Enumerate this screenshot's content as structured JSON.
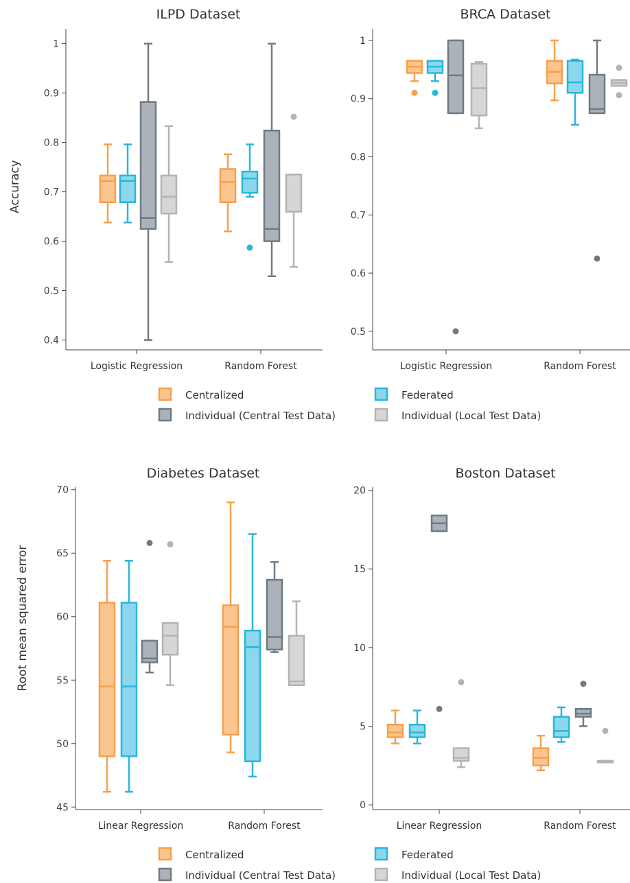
{
  "colors": {
    "centralized": {
      "stroke": "#f6a04a",
      "fill": "#fbc590"
    },
    "federated": {
      "stroke": "#27b6dd",
      "fill": "#8dd7ec"
    },
    "individual_central": {
      "stroke": "#6e7a84",
      "fill": "#abb2b9"
    },
    "individual_local": {
      "stroke": "#b3b3b3",
      "fill": "#d6d6d6"
    }
  },
  "legend": {
    "items": [
      {
        "key": "centralized",
        "label": "Centralized"
      },
      {
        "key": "federated",
        "label": "Federated"
      },
      {
        "key": "individual_central",
        "label": "Individual (Central Test Data)"
      },
      {
        "key": "individual_local",
        "label": "Individual (Local Test Data)"
      }
    ]
  },
  "shared_ylabels": {
    "top": "Accuracy",
    "bottom": "Root mean squared error"
  },
  "chart_data": [
    {
      "type": "box",
      "title": "ILPD Dataset",
      "ylabel": "Accuracy",
      "ylim": [
        0.38,
        1.03
      ],
      "yticks": [
        0.4,
        0.5,
        0.6,
        0.7,
        0.8,
        0.9,
        1
      ],
      "ytick_labels": [
        "0.4",
        "0.5",
        "0.6",
        "0.7",
        "0.8",
        "0.9",
        "1"
      ],
      "categories": [
        "Logistic Regression",
        "Random Forest"
      ],
      "series": [
        {
          "key": "centralized",
          "name": "Centralized",
          "boxes": [
            {
              "min": 0.638,
              "q1": 0.679,
              "median": 0.722,
              "q3": 0.733,
              "max": 0.796,
              "outliers": []
            },
            {
              "min": 0.62,
              "q1": 0.679,
              "median": 0.72,
              "q3": 0.746,
              "max": 0.776,
              "outliers": []
            }
          ]
        },
        {
          "key": "federated",
          "name": "Federated",
          "boxes": [
            {
              "min": 0.638,
              "q1": 0.679,
              "median": 0.722,
              "q3": 0.733,
              "max": 0.796,
              "outliers": []
            },
            {
              "min": 0.69,
              "q1": 0.698,
              "median": 0.727,
              "q3": 0.741,
              "max": 0.796,
              "outliers": [
                0.587
              ]
            }
          ]
        },
        {
          "key": "individual_central",
          "name": "Individual (Central Test Data)",
          "boxes": [
            {
              "min": 0.4,
              "q1": 0.625,
              "median": 0.647,
              "q3": 0.882,
              "max": 1.0,
              "outliers": []
            },
            {
              "min": 0.529,
              "q1": 0.6,
              "median": 0.625,
              "q3": 0.824,
              "max": 1.0,
              "outliers": []
            }
          ]
        },
        {
          "key": "individual_local",
          "name": "Individual (Local Test Data)",
          "boxes": [
            {
              "min": 0.558,
              "q1": 0.656,
              "median": 0.69,
              "q3": 0.733,
              "max": 0.833,
              "outliers": []
            },
            {
              "min": 0.548,
              "q1": 0.66,
              "median": 0.66,
              "q3": 0.735,
              "max": 0.735,
              "outliers": [
                0.852
              ]
            }
          ]
        }
      ]
    },
    {
      "type": "box",
      "title": "BRCA Dataset",
      "ylabel": "",
      "ylim": [
        0.468,
        1.02
      ],
      "yticks": [
        0.5,
        0.6,
        0.7,
        0.8,
        0.9,
        1
      ],
      "ytick_labels": [
        "0.5",
        "0.6",
        "0.7",
        "0.8",
        "0.9",
        "1"
      ],
      "categories": [
        "Logistic Regression",
        "Random Forest"
      ],
      "series": [
        {
          "key": "centralized",
          "name": "Centralized",
          "boxes": [
            {
              "min": 0.93,
              "q1": 0.944,
              "median": 0.955,
              "q3": 0.965,
              "max": 0.965,
              "outliers": [
                0.91
              ]
            },
            {
              "min": 0.897,
              "q1": 0.926,
              "median": 0.946,
              "q3": 0.965,
              "max": 1.0,
              "outliers": []
            }
          ]
        },
        {
          "key": "federated",
          "name": "Federated",
          "boxes": [
            {
              "min": 0.93,
              "q1": 0.944,
              "median": 0.955,
              "q3": 0.965,
              "max": 0.965,
              "outliers": [
                0.91
              ]
            },
            {
              "min": 0.855,
              "q1": 0.91,
              "median": 0.928,
              "q3": 0.965,
              "max": 0.967,
              "outliers": []
            }
          ]
        },
        {
          "key": "individual_central",
          "name": "Individual (Central Test Data)",
          "boxes": [
            {
              "min": 0.875,
              "q1": 0.875,
              "median": 0.94,
              "q3": 1.0,
              "max": 1.0,
              "outliers": [
                0.5
              ]
            },
            {
              "min": 0.875,
              "q1": 0.875,
              "median": 0.882,
              "q3": 0.941,
              "max": 1.0,
              "outliers": [
                0.625
              ]
            }
          ]
        },
        {
          "key": "individual_local",
          "name": "Individual (Local Test Data)",
          "boxes": [
            {
              "min": 0.849,
              "q1": 0.871,
              "median": 0.918,
              "q3": 0.96,
              "max": 0.963,
              "outliers": []
            },
            {
              "min": 0.922,
              "q1": 0.922,
              "median": 0.927,
              "q3": 0.932,
              "max": 0.932,
              "outliers": [
                0.953,
                0.906
              ]
            }
          ]
        }
      ]
    },
    {
      "type": "box",
      "title": "Diabetes Dataset",
      "ylabel": "Root mean squared error",
      "ylim": [
        44.8,
        70.2
      ],
      "yticks": [
        45,
        50,
        55,
        60,
        65,
        70
      ],
      "ytick_labels": [
        "45",
        "50",
        "55",
        "60",
        "65",
        "70"
      ],
      "categories": [
        "Linear Regression",
        "Random Forest"
      ],
      "series": [
        {
          "key": "centralized",
          "name": "Centralized",
          "boxes": [
            {
              "min": 46.2,
              "q1": 49.0,
              "median": 54.5,
              "q3": 61.1,
              "max": 64.4,
              "outliers": []
            },
            {
              "min": 49.3,
              "q1": 50.7,
              "median": 59.2,
              "q3": 60.9,
              "max": 69.0,
              "outliers": []
            }
          ]
        },
        {
          "key": "federated",
          "name": "Federated",
          "boxes": [
            {
              "min": 46.2,
              "q1": 49.0,
              "median": 54.5,
              "q3": 61.1,
              "max": 64.4,
              "outliers": []
            },
            {
              "min": 47.4,
              "q1": 48.6,
              "median": 57.6,
              "q3": 58.9,
              "max": 66.5,
              "outliers": []
            }
          ]
        },
        {
          "key": "individual_central",
          "name": "Individual (Central Test Data)",
          "boxes": [
            {
              "min": 55.6,
              "q1": 56.4,
              "median": 56.7,
              "q3": 58.1,
              "max": 58.1,
              "outliers": [
                65.8
              ]
            },
            {
              "min": 57.2,
              "q1": 57.4,
              "median": 58.4,
              "q3": 62.9,
              "max": 64.3,
              "outliers": []
            }
          ]
        },
        {
          "key": "individual_local",
          "name": "Individual (Local Test Data)",
          "boxes": [
            {
              "min": 54.6,
              "q1": 57.0,
              "median": 58.5,
              "q3": 59.5,
              "max": 59.5,
              "outliers": [
                65.7
              ]
            },
            {
              "min": 54.6,
              "q1": 54.6,
              "median": 54.9,
              "q3": 58.5,
              "max": 61.2,
              "outliers": []
            }
          ]
        }
      ]
    },
    {
      "type": "box",
      "title": "Boston Dataset",
      "ylabel": "",
      "ylim": [
        -0.3,
        20.2
      ],
      "yticks": [
        0,
        5,
        10,
        15,
        20
      ],
      "ytick_labels": [
        "0",
        "5",
        "10",
        "15",
        "20"
      ],
      "categories": [
        "Linear Regression",
        "Random Forest"
      ],
      "series": [
        {
          "key": "centralized",
          "name": "Centralized",
          "boxes": [
            {
              "min": 3.9,
              "q1": 4.3,
              "median": 4.6,
              "q3": 5.1,
              "max": 6.0,
              "outliers": []
            },
            {
              "min": 2.2,
              "q1": 2.5,
              "median": 3.0,
              "q3": 3.6,
              "max": 4.4,
              "outliers": []
            }
          ]
        },
        {
          "key": "federated",
          "name": "Federated",
          "boxes": [
            {
              "min": 3.9,
              "q1": 4.3,
              "median": 4.6,
              "q3": 5.1,
              "max": 6.0,
              "outliers": []
            },
            {
              "min": 4.0,
              "q1": 4.3,
              "median": 4.7,
              "q3": 5.6,
              "max": 6.2,
              "outliers": []
            }
          ]
        },
        {
          "key": "individual_central",
          "name": "Individual (Central Test Data)",
          "boxes": [
            {
              "min": 17.4,
              "q1": 17.4,
              "median": 17.9,
              "q3": 18.4,
              "max": 18.4,
              "outliers": [
                6.1
              ]
            },
            {
              "min": 5.0,
              "q1": 5.6,
              "median": 5.8,
              "q3": 6.1,
              "max": 6.1,
              "outliers": [
                7.7
              ]
            }
          ]
        },
        {
          "key": "individual_local",
          "name": "Individual (Local Test Data)",
          "boxes": [
            {
              "min": 2.4,
              "q1": 2.8,
              "median": 3.0,
              "q3": 3.6,
              "max": 3.6,
              "outliers": [
                7.8
              ]
            },
            {
              "min": 2.7,
              "q1": 2.7,
              "median": 2.75,
              "q3": 2.8,
              "max": 2.8,
              "outliers": [
                4.7
              ]
            }
          ]
        }
      ]
    }
  ]
}
